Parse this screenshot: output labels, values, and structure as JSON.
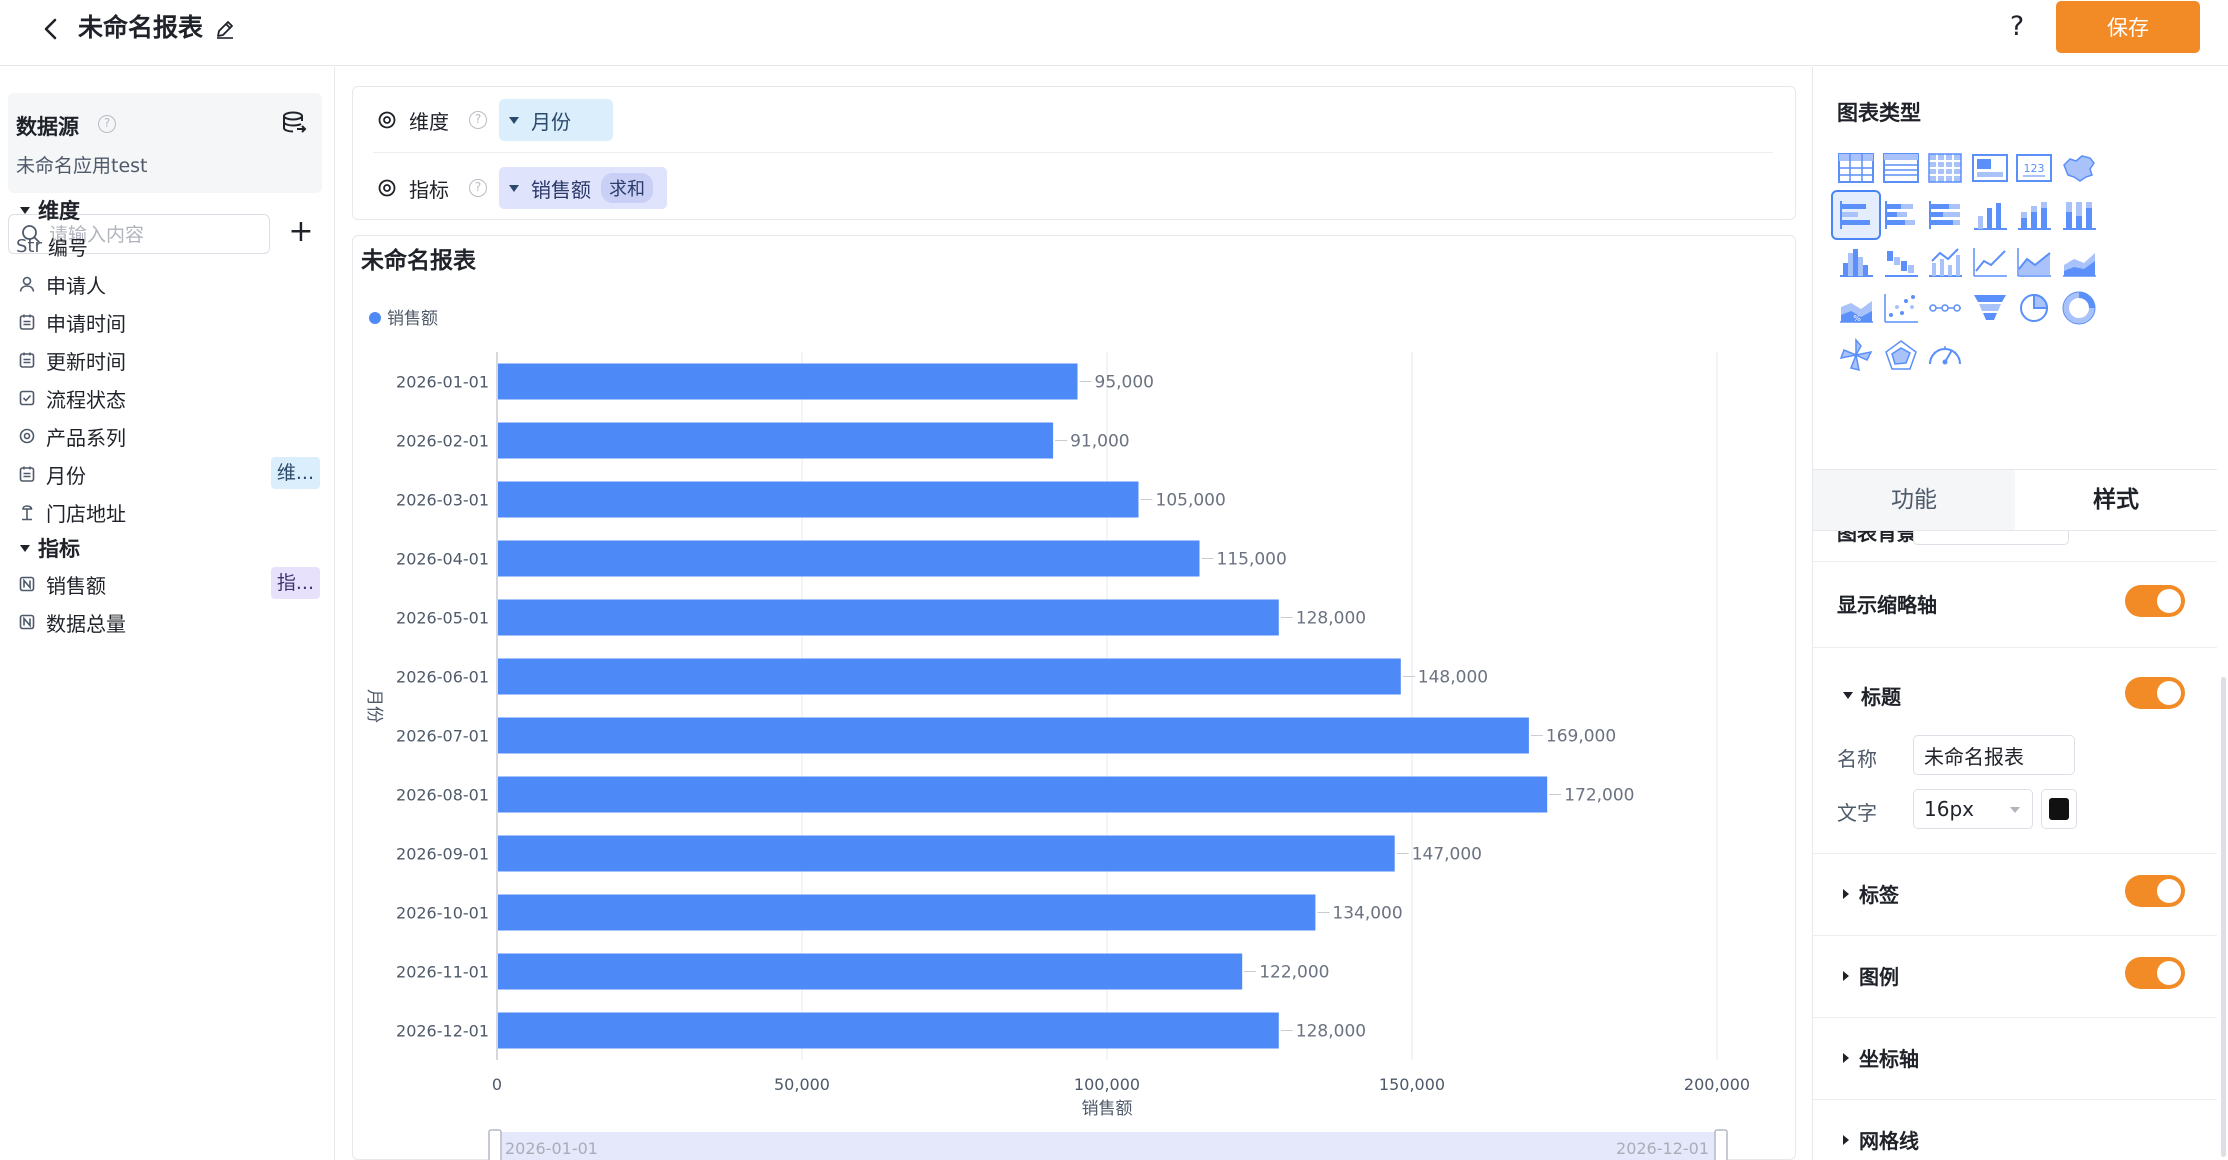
{
  "header": {
    "title": "未命名报表",
    "help_label": "?",
    "save_label": "保存"
  },
  "datasource": {
    "title": "数据源",
    "app_name": "未命名应用test",
    "help_label": "?"
  },
  "search": {
    "placeholder": "请输入内容",
    "add_label": "+"
  },
  "dimensions": {
    "label": "维度",
    "items": [
      {
        "icon": "str-icon",
        "icon_text": "Str",
        "label": "编号",
        "tag": ""
      },
      {
        "icon": "person-icon",
        "label": "申请人",
        "tag": ""
      },
      {
        "icon": "calendar-icon",
        "label": "申请时间",
        "tag": ""
      },
      {
        "icon": "calendar-icon",
        "label": "更新时间",
        "tag": ""
      },
      {
        "icon": "checkbox-icon",
        "label": "流程状态",
        "tag": ""
      },
      {
        "icon": "radio-icon",
        "label": "产品系列",
        "tag": ""
      },
      {
        "icon": "calendar-icon",
        "label": "月份",
        "tag": "维..."
      },
      {
        "icon": "location-icon",
        "label": "门店地址",
        "tag": ""
      }
    ]
  },
  "metrics": {
    "label": "指标",
    "items": [
      {
        "icon": "number-icon",
        "label": "销售额",
        "tag": "指..."
      },
      {
        "icon": "number-icon",
        "label": "数据总量",
        "tag": ""
      }
    ]
  },
  "config": {
    "dimension_label": "维度",
    "dimension_value": "月份",
    "metric_label": "指标",
    "metric_value": "销售额",
    "metric_agg": "求和",
    "help_label": "?"
  },
  "chart_data": {
    "type": "bar",
    "orientation": "horizontal",
    "title": "未命名报表",
    "legend": [
      "销售额"
    ],
    "legend_placement": "top-left",
    "xlabel": "销售额",
    "ylabel": "月份",
    "xlim": [
      0,
      200000
    ],
    "x_ticks": [
      "0",
      "50,000",
      "100,000",
      "150,000",
      "200,000"
    ],
    "grid": true,
    "color": "#4e8af7",
    "categories": [
      "2026-01-01",
      "2026-02-01",
      "2026-03-01",
      "2026-04-01",
      "2026-05-01",
      "2026-06-01",
      "2026-07-01",
      "2026-08-01",
      "2026-09-01",
      "2026-10-01",
      "2026-11-01",
      "2026-12-01"
    ],
    "series": [
      {
        "name": "销售额",
        "values": [
          95000,
          91000,
          105000,
          115000,
          128000,
          148000,
          169000,
          172000,
          147000,
          134000,
          122000,
          128000
        ]
      }
    ],
    "value_labels": [
      "95,000",
      "91,000",
      "105,000",
      "115,000",
      "128,000",
      "148,000",
      "169,000",
      "172,000",
      "147,000",
      "134,000",
      "122,000",
      "128,000"
    ],
    "zoom_range": [
      "2026-01-01",
      "2026-12-01"
    ]
  },
  "right_panel": {
    "chart_types_title": "图表类型",
    "chart_types": [
      "table-icon",
      "detail-table-icon",
      "pivot-table-icon",
      "kpi-card-icon",
      "number-card-icon",
      "map-icon",
      "bar-horizontal-icon",
      "stacked-bar-horizontal-icon",
      "percent-bar-horizontal-icon",
      "column-icon",
      "stacked-column-icon",
      "percent-column-icon",
      "histogram-icon",
      "waterfall-icon",
      "combo-icon",
      "line-icon",
      "area-icon",
      "stacked-area-icon",
      "percent-area-icon",
      "scatter-icon",
      "timeline-icon",
      "funnel-icon",
      "pie-icon",
      "donut-icon",
      "rose-icon",
      "radar-icon",
      "gauge-icon"
    ],
    "selected_chart_type": 6,
    "tabs": [
      "功能",
      "样式"
    ],
    "active_tab": 1,
    "style": {
      "background_label": "图表背景",
      "show_zoom_label": "显示缩略轴",
      "show_zoom": true,
      "title_section": "标题",
      "title_on": true,
      "name_label": "名称",
      "name_value": "未命名报表",
      "text_label": "文字",
      "font_size": "16px",
      "text_color": "#000000",
      "label_section": "标签",
      "label_on": true,
      "legend_section": "图例",
      "legend_on": true,
      "axis_section": "坐标轴",
      "grid_section": "网格线"
    }
  }
}
